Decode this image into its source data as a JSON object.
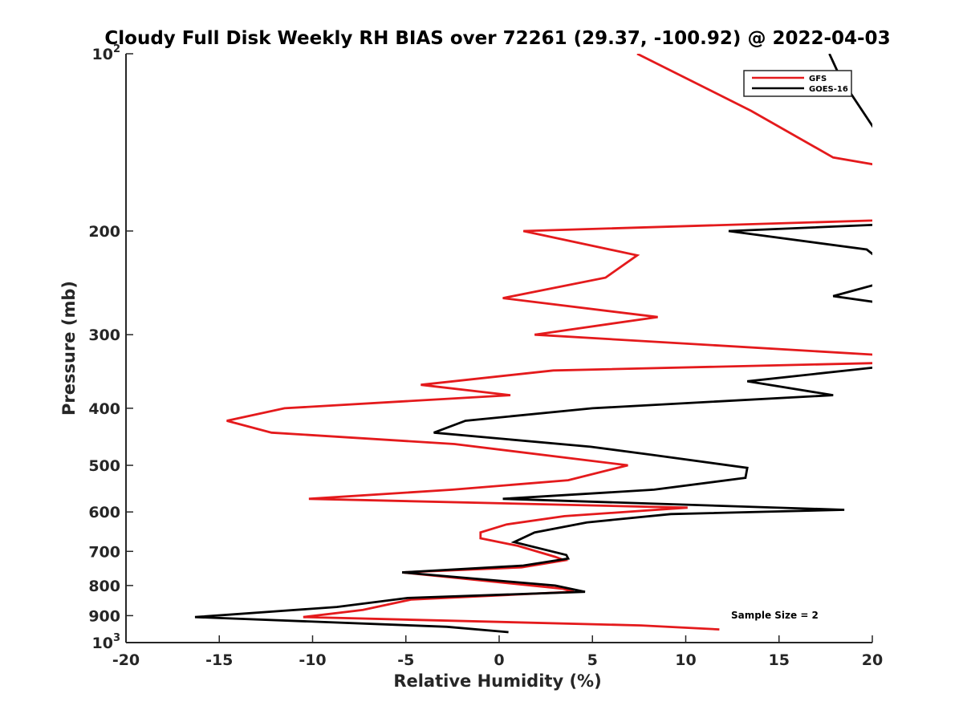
{
  "chart_data": {
    "type": "line",
    "title": "Cloudy Full Disk Weekly RH BIAS over 72261 (29.37, -100.92) @ 2022-04-03",
    "xlabel": "Relative Humidity (%)",
    "ylabel": "Pressure (mb)",
    "xlim": [
      -20,
      20
    ],
    "ylim": [
      100,
      1000
    ],
    "yscale": "log",
    "y_reversed": true,
    "xticks": [
      "-20",
      "-15",
      "-10",
      "-5",
      "0",
      "5",
      "10",
      "15",
      "20"
    ],
    "yticks": [
      {
        "value": 100,
        "base": "10",
        "exp": "2"
      },
      {
        "value": 200,
        "label": "200"
      },
      {
        "value": 300,
        "label": "300"
      },
      {
        "value": 400,
        "label": "400"
      },
      {
        "value": 500,
        "label": "500"
      },
      {
        "value": 600,
        "label": "600"
      },
      {
        "value": 700,
        "label": "700"
      },
      {
        "value": 800,
        "label": "800"
      },
      {
        "value": 900,
        "label": "900"
      },
      {
        "value": 1000,
        "base": "10",
        "exp": "3"
      }
    ],
    "grid": false,
    "legend_position": "top-right",
    "annotation": "Sample Size = 2",
    "series": [
      {
        "name": "GFS",
        "color": "#e41a1c",
        "points": [
          [
            7.4,
            100
          ],
          [
            13.5,
            125
          ],
          [
            17.9,
            150
          ],
          [
            20.5,
            155
          ],
          [
            null,
            null
          ],
          [
            21,
            190
          ],
          [
            20,
            192
          ],
          [
            1.3,
            200
          ],
          [
            7.4,
            220
          ],
          [
            5.7,
            240
          ],
          [
            0.2,
            260
          ],
          [
            8.5,
            280
          ],
          [
            1.9,
            300
          ],
          [
            20.5,
            325
          ],
          [
            null,
            null
          ],
          [
            20.5,
            335
          ],
          [
            2.9,
            345
          ],
          [
            -4.2,
            365
          ],
          [
            0.6,
            380
          ],
          [
            -11.5,
            400
          ],
          [
            -14.6,
            420
          ],
          [
            -12.2,
            440
          ],
          [
            -2.4,
            460
          ],
          [
            6.9,
            500
          ],
          [
            3.7,
            530
          ],
          [
            -2.5,
            550
          ],
          [
            -10.2,
            570
          ],
          [
            10.1,
            590
          ],
          [
            3.5,
            610
          ],
          [
            0.4,
            630
          ],
          [
            -1.0,
            650
          ],
          [
            -1.0,
            665
          ],
          [
            1.0,
            685
          ],
          [
            3.0,
            715
          ],
          [
            3.5,
            725
          ],
          [
            1.2,
            745
          ],
          [
            -5.2,
            760
          ],
          [
            3.4,
            810
          ],
          [
            4.0,
            820
          ],
          [
            -4.7,
            845
          ],
          [
            -7.3,
            880
          ],
          [
            -10.5,
            905
          ],
          [
            7.6,
            935
          ],
          [
            11.8,
            950
          ]
        ]
      },
      {
        "name": "GOES-16",
        "color": "#000000",
        "points": [
          [
            17.7,
            100
          ],
          [
            18.3,
            110
          ],
          [
            20.5,
            140
          ],
          [
            null,
            null
          ],
          [
            20.5,
            195
          ],
          [
            12.3,
            200
          ],
          [
            19.7,
            215
          ],
          [
            20.5,
            225
          ],
          [
            null,
            null
          ],
          [
            20.5,
            245
          ],
          [
            17.9,
            258
          ],
          [
            20.5,
            265
          ],
          [
            null,
            null
          ],
          [
            20.5,
            340
          ],
          [
            13.3,
            360
          ],
          [
            17.9,
            380
          ],
          [
            5.0,
            400
          ],
          [
            -1.8,
            420
          ],
          [
            -3.5,
            440
          ],
          [
            4.9,
            465
          ],
          [
            8.2,
            480
          ],
          [
            13.3,
            505
          ],
          [
            13.2,
            525
          ],
          [
            8.3,
            550
          ],
          [
            0.2,
            570
          ],
          [
            18.5,
            595
          ],
          [
            9.2,
            605
          ],
          [
            4.7,
            625
          ],
          [
            1.9,
            650
          ],
          [
            0.8,
            675
          ],
          [
            3.6,
            710
          ],
          [
            3.7,
            720
          ],
          [
            1.3,
            740
          ],
          [
            -5.2,
            760
          ],
          [
            3.0,
            800
          ],
          [
            4.6,
            820
          ],
          [
            -4.9,
            840
          ],
          [
            -8.7,
            870
          ],
          [
            -16.3,
            905
          ],
          [
            -2.8,
            940
          ],
          [
            0.5,
            960
          ]
        ]
      }
    ]
  }
}
